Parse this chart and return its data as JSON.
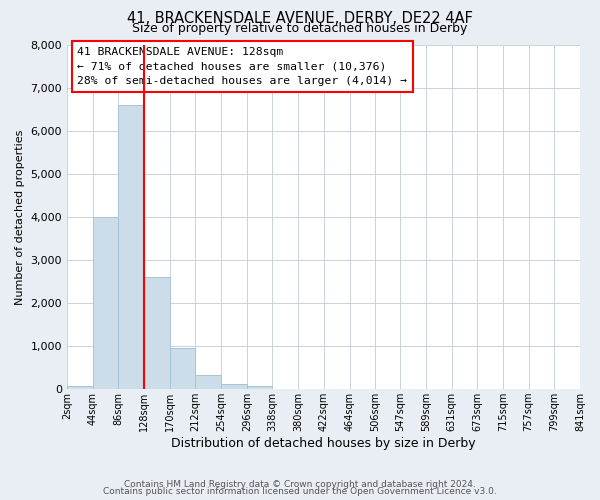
{
  "title": "41, BRACKENSDALE AVENUE, DERBY, DE22 4AF",
  "subtitle": "Size of property relative to detached houses in Derby",
  "xlabel": "Distribution of detached houses by size in Derby",
  "ylabel": "Number of detached properties",
  "bin_edges": [
    2,
    44,
    86,
    128,
    170,
    212,
    254,
    296,
    338,
    380,
    422,
    464,
    506,
    547,
    589,
    631,
    673,
    715,
    757,
    799,
    841
  ],
  "bin_counts": [
    70,
    4000,
    6600,
    2600,
    960,
    330,
    130,
    70,
    0,
    0,
    0,
    0,
    0,
    0,
    0,
    0,
    0,
    0,
    0,
    0
  ],
  "bar_color": "#ccdce8",
  "bar_edge_color": "#a8c4d8",
  "vline_x": 128,
  "vline_color": "red",
  "ylim": [
    0,
    8000
  ],
  "yticks": [
    0,
    1000,
    2000,
    3000,
    4000,
    5000,
    6000,
    7000,
    8000
  ],
  "annotation_box_text": "41 BRACKENSDALE AVENUE: 128sqm\n← 71% of detached houses are smaller (10,376)\n28% of semi-detached houses are larger (4,014) →",
  "annotation_box_color": "white",
  "annotation_box_edge_color": "red",
  "footer_line1": "Contains HM Land Registry data © Crown copyright and database right 2024.",
  "footer_line2": "Contains public sector information licensed under the Open Government Licence v3.0.",
  "fig_bg_color": "#e8eef4",
  "plot_bg_color": "white",
  "grid_color": "#c8d4dc"
}
